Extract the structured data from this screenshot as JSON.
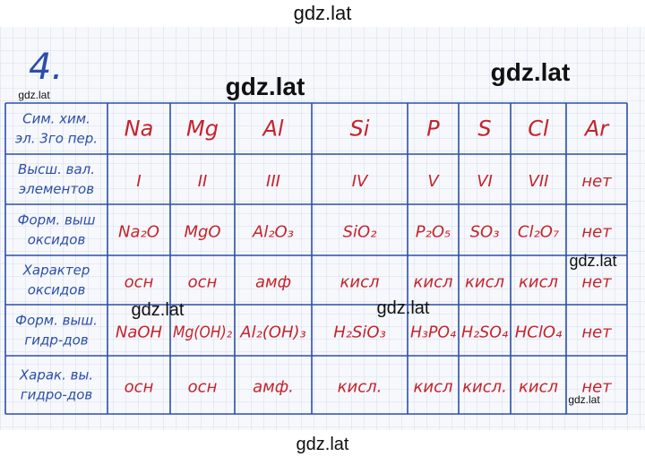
{
  "task_number": "4.",
  "table": {
    "rows": [
      {
        "header": [
          "Сим. хим.",
          "эл. 3го пер."
        ],
        "cells": [
          "Na",
          "Mg",
          "Al",
          "Si",
          "P",
          "S",
          "Cl",
          "Ar"
        ]
      },
      {
        "header": [
          "Высш. вал.",
          "элементов"
        ],
        "cells": [
          "I",
          "II",
          "III",
          "IV",
          "V",
          "VI",
          "VII",
          "нет"
        ]
      },
      {
        "header": [
          "Форм. выш",
          "оксидов"
        ],
        "cells": [
          "Na₂O",
          "MgO",
          "Al₂O₃",
          "SiO₂",
          "P₂O₅",
          "SO₃",
          "Cl₂O₇",
          "нет"
        ]
      },
      {
        "header": [
          "Характер",
          "оксидов"
        ],
        "cells": [
          "осн",
          "осн",
          "амф",
          "кисл",
          "кисл",
          "кисл",
          "кисл",
          "нет"
        ]
      },
      {
        "header": [
          "Форм. выш.",
          "гидр-дов"
        ],
        "cells": [
          "NaOH",
          "Mg(OH)₂",
          "Al₂(OH)₃",
          "H₂SiO₃",
          "H₃PO₄",
          "H₂SO₄",
          "HClO₄",
          "нет"
        ]
      },
      {
        "header": [
          "Харак. вы.",
          "гидро-дов"
        ],
        "cells": [
          "осн",
          "осн",
          "амф.",
          "кисл.",
          "кисл",
          "кисл.",
          "кисл",
          "нет"
        ]
      }
    ]
  },
  "watermarks": [
    "gdz.lat",
    "gdz.lat",
    "gdz.lat",
    "gdz.lat",
    "gdz.lat",
    "gdz.lat",
    "gdz.lat",
    "gdz.lat",
    "gdz.lat"
  ]
}
